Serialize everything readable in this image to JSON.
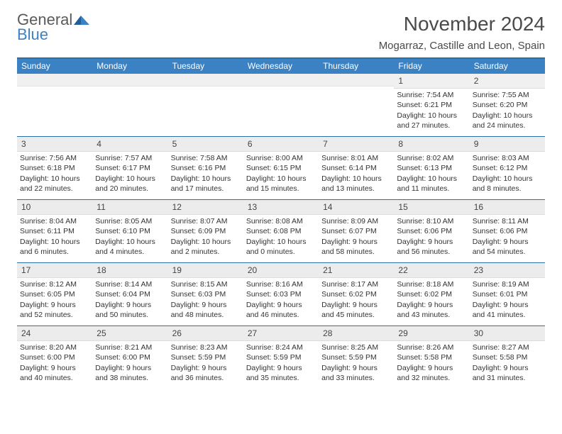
{
  "brand": {
    "general": "General",
    "blue": "Blue"
  },
  "header": {
    "title": "November 2024",
    "location": "Mogarraz, Castille and Leon, Spain"
  },
  "colors": {
    "header_blue": "#3b82c4",
    "rule_blue": "#2a6fa8",
    "daynum_bg": "#ececec",
    "text": "#333333",
    "logo_gray": "#5a5a5a"
  },
  "weekdays": [
    "Sunday",
    "Monday",
    "Tuesday",
    "Wednesday",
    "Thursday",
    "Friday",
    "Saturday"
  ],
  "weeks": [
    [
      null,
      null,
      null,
      null,
      null,
      {
        "n": "1",
        "sr": "Sunrise: 7:54 AM",
        "ss": "Sunset: 6:21 PM",
        "d1": "Daylight: 10 hours",
        "d2": "and 27 minutes."
      },
      {
        "n": "2",
        "sr": "Sunrise: 7:55 AM",
        "ss": "Sunset: 6:20 PM",
        "d1": "Daylight: 10 hours",
        "d2": "and 24 minutes."
      }
    ],
    [
      {
        "n": "3",
        "sr": "Sunrise: 7:56 AM",
        "ss": "Sunset: 6:18 PM",
        "d1": "Daylight: 10 hours",
        "d2": "and 22 minutes."
      },
      {
        "n": "4",
        "sr": "Sunrise: 7:57 AM",
        "ss": "Sunset: 6:17 PM",
        "d1": "Daylight: 10 hours",
        "d2": "and 20 minutes."
      },
      {
        "n": "5",
        "sr": "Sunrise: 7:58 AM",
        "ss": "Sunset: 6:16 PM",
        "d1": "Daylight: 10 hours",
        "d2": "and 17 minutes."
      },
      {
        "n": "6",
        "sr": "Sunrise: 8:00 AM",
        "ss": "Sunset: 6:15 PM",
        "d1": "Daylight: 10 hours",
        "d2": "and 15 minutes."
      },
      {
        "n": "7",
        "sr": "Sunrise: 8:01 AM",
        "ss": "Sunset: 6:14 PM",
        "d1": "Daylight: 10 hours",
        "d2": "and 13 minutes."
      },
      {
        "n": "8",
        "sr": "Sunrise: 8:02 AM",
        "ss": "Sunset: 6:13 PM",
        "d1": "Daylight: 10 hours",
        "d2": "and 11 minutes."
      },
      {
        "n": "9",
        "sr": "Sunrise: 8:03 AM",
        "ss": "Sunset: 6:12 PM",
        "d1": "Daylight: 10 hours",
        "d2": "and 8 minutes."
      }
    ],
    [
      {
        "n": "10",
        "sr": "Sunrise: 8:04 AM",
        "ss": "Sunset: 6:11 PM",
        "d1": "Daylight: 10 hours",
        "d2": "and 6 minutes."
      },
      {
        "n": "11",
        "sr": "Sunrise: 8:05 AM",
        "ss": "Sunset: 6:10 PM",
        "d1": "Daylight: 10 hours",
        "d2": "and 4 minutes."
      },
      {
        "n": "12",
        "sr": "Sunrise: 8:07 AM",
        "ss": "Sunset: 6:09 PM",
        "d1": "Daylight: 10 hours",
        "d2": "and 2 minutes."
      },
      {
        "n": "13",
        "sr": "Sunrise: 8:08 AM",
        "ss": "Sunset: 6:08 PM",
        "d1": "Daylight: 10 hours",
        "d2": "and 0 minutes."
      },
      {
        "n": "14",
        "sr": "Sunrise: 8:09 AM",
        "ss": "Sunset: 6:07 PM",
        "d1": "Daylight: 9 hours",
        "d2": "and 58 minutes."
      },
      {
        "n": "15",
        "sr": "Sunrise: 8:10 AM",
        "ss": "Sunset: 6:06 PM",
        "d1": "Daylight: 9 hours",
        "d2": "and 56 minutes."
      },
      {
        "n": "16",
        "sr": "Sunrise: 8:11 AM",
        "ss": "Sunset: 6:06 PM",
        "d1": "Daylight: 9 hours",
        "d2": "and 54 minutes."
      }
    ],
    [
      {
        "n": "17",
        "sr": "Sunrise: 8:12 AM",
        "ss": "Sunset: 6:05 PM",
        "d1": "Daylight: 9 hours",
        "d2": "and 52 minutes."
      },
      {
        "n": "18",
        "sr": "Sunrise: 8:14 AM",
        "ss": "Sunset: 6:04 PM",
        "d1": "Daylight: 9 hours",
        "d2": "and 50 minutes."
      },
      {
        "n": "19",
        "sr": "Sunrise: 8:15 AM",
        "ss": "Sunset: 6:03 PM",
        "d1": "Daylight: 9 hours",
        "d2": "and 48 minutes."
      },
      {
        "n": "20",
        "sr": "Sunrise: 8:16 AM",
        "ss": "Sunset: 6:03 PM",
        "d1": "Daylight: 9 hours",
        "d2": "and 46 minutes."
      },
      {
        "n": "21",
        "sr": "Sunrise: 8:17 AM",
        "ss": "Sunset: 6:02 PM",
        "d1": "Daylight: 9 hours",
        "d2": "and 45 minutes."
      },
      {
        "n": "22",
        "sr": "Sunrise: 8:18 AM",
        "ss": "Sunset: 6:02 PM",
        "d1": "Daylight: 9 hours",
        "d2": "and 43 minutes."
      },
      {
        "n": "23",
        "sr": "Sunrise: 8:19 AM",
        "ss": "Sunset: 6:01 PM",
        "d1": "Daylight: 9 hours",
        "d2": "and 41 minutes."
      }
    ],
    [
      {
        "n": "24",
        "sr": "Sunrise: 8:20 AM",
        "ss": "Sunset: 6:00 PM",
        "d1": "Daylight: 9 hours",
        "d2": "and 40 minutes."
      },
      {
        "n": "25",
        "sr": "Sunrise: 8:21 AM",
        "ss": "Sunset: 6:00 PM",
        "d1": "Daylight: 9 hours",
        "d2": "and 38 minutes."
      },
      {
        "n": "26",
        "sr": "Sunrise: 8:23 AM",
        "ss": "Sunset: 5:59 PM",
        "d1": "Daylight: 9 hours",
        "d2": "and 36 minutes."
      },
      {
        "n": "27",
        "sr": "Sunrise: 8:24 AM",
        "ss": "Sunset: 5:59 PM",
        "d1": "Daylight: 9 hours",
        "d2": "and 35 minutes."
      },
      {
        "n": "28",
        "sr": "Sunrise: 8:25 AM",
        "ss": "Sunset: 5:59 PM",
        "d1": "Daylight: 9 hours",
        "d2": "and 33 minutes."
      },
      {
        "n": "29",
        "sr": "Sunrise: 8:26 AM",
        "ss": "Sunset: 5:58 PM",
        "d1": "Daylight: 9 hours",
        "d2": "and 32 minutes."
      },
      {
        "n": "30",
        "sr": "Sunrise: 8:27 AM",
        "ss": "Sunset: 5:58 PM",
        "d1": "Daylight: 9 hours",
        "d2": "and 31 minutes."
      }
    ]
  ]
}
